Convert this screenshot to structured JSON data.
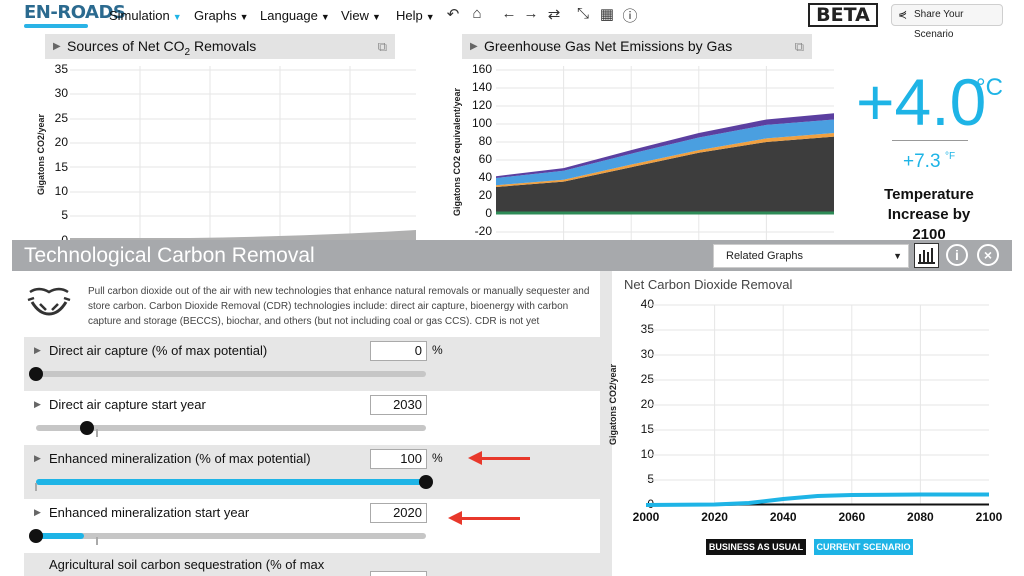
{
  "header": {
    "logo": "EN-ROADS",
    "menu": [
      {
        "label": "Simulation"
      },
      {
        "label": "Graphs"
      },
      {
        "label": "Language"
      },
      {
        "label": "View"
      },
      {
        "label": "Help"
      }
    ],
    "tools": [
      "undo-icon",
      "home-icon",
      "back-icon",
      "forward-icon",
      "swap-icon",
      "collapse-icon",
      "grid-icon",
      "info-icon"
    ],
    "beta": "BETA",
    "share_label": "Share Your Scenario"
  },
  "left_graph": {
    "title": "Sources of Net CO",
    "title_sub": "2",
    "title_suffix": " Removals",
    "ylabel": "Gigatons CO2/year",
    "yticks": [
      "35",
      "30",
      "25",
      "20",
      "15",
      "10",
      "5",
      "0"
    ]
  },
  "mid_graph": {
    "title": "Greenhouse Gas Net Emissions by Gas",
    "ylabel": "Gigatons CO2 equivalent/year",
    "yticks": [
      "160",
      "140",
      "120",
      "100",
      "80",
      "60",
      "40",
      "20",
      "0",
      "-20"
    ]
  },
  "temperature": {
    "celsius": "+4.0",
    "celsius_unit": "°C",
    "fahrenheit": "+7.3",
    "fahrenheit_unit": "°F",
    "label_line1": "Temperature",
    "label_line2": "Increase by",
    "label_line3": "2100",
    "accent": "#1eb4e6"
  },
  "panel": {
    "title": "Technological Carbon Removal",
    "select_value": "Related Graphs",
    "description": "Pull carbon dioxide out of the air with new technologies that enhance natural removals or manually sequester and store carbon. Carbon Dioxide Removal (CDR) technologies include: direct air capture, bioenergy with carbon capture and storage (BECCS), biochar, and others (but not including coal or gas CCS). CDR is not yet",
    "sliders": [
      {
        "label": "Direct air capture (% of max potential)",
        "value": "0",
        "unit": "%",
        "level": 0.0
      },
      {
        "label": "Direct air capture start year",
        "value": "2030",
        "unit": "",
        "level": 0.13
      },
      {
        "label": "Enhanced mineralization (% of max potential)",
        "value": "100",
        "unit": "%",
        "level": 1.0
      },
      {
        "label": "Enhanced mineralization start year",
        "value": "2020",
        "unit": "",
        "level": 0.0
      },
      {
        "label": "Agricultural soil carbon sequestration (% of max",
        "value": "",
        "unit": "",
        "level": 0.0
      }
    ]
  },
  "right_graph": {
    "title": "Net Carbon Dioxide Removal",
    "ylabel": "Gigatons CO2/year",
    "yticks": [
      "40",
      "35",
      "30",
      "25",
      "20",
      "15",
      "10",
      "5",
      "0"
    ],
    "xticks": [
      "2000",
      "2020",
      "2040",
      "2060",
      "2080",
      "2100"
    ],
    "legend_bau": "BUSINESS AS USUAL",
    "legend_current": "CURRENT SCENARIO"
  },
  "chart_data": [
    {
      "type": "area",
      "title": "Greenhouse Gas Net Emissions by Gas",
      "ylabel": "Gigatons CO2 equivalent/year",
      "ylim": [
        -20,
        160
      ],
      "x": [
        2000,
        2020,
        2040,
        2060,
        2080,
        2100
      ],
      "series": [
        {
          "values": [
            30,
            36,
            52,
            68,
            80,
            86
          ],
          "color": "#3d3d3d"
        },
        {
          "values": [
            2,
            2,
            3,
            3,
            4,
            4
          ],
          "color": "#f0a040"
        },
        {
          "values": [
            8,
            10,
            12,
            14,
            15,
            15
          ],
          "color": "#4a9fe0"
        },
        {
          "values": [
            2,
            3,
            4,
            5,
            6,
            7
          ],
          "color": "#5b3fa0"
        }
      ]
    },
    {
      "type": "line",
      "title": "Net Carbon Dioxide Removal",
      "ylabel": "Gigatons CO2/year",
      "ylim": [
        0,
        40
      ],
      "x": [
        2000,
        2020,
        2030,
        2040,
        2050,
        2060,
        2080,
        2100
      ],
      "series": [
        {
          "name": "BUSINESS AS USUAL",
          "values": [
            0,
            0,
            0.1,
            0.1,
            0.1,
            0.1,
            0.1,
            0.1
          ]
        },
        {
          "name": "CURRENT SCENARIO",
          "values": [
            0,
            0.1,
            0.4,
            1.2,
            1.8,
            2.0,
            2.1,
            2.1
          ]
        }
      ]
    }
  ]
}
